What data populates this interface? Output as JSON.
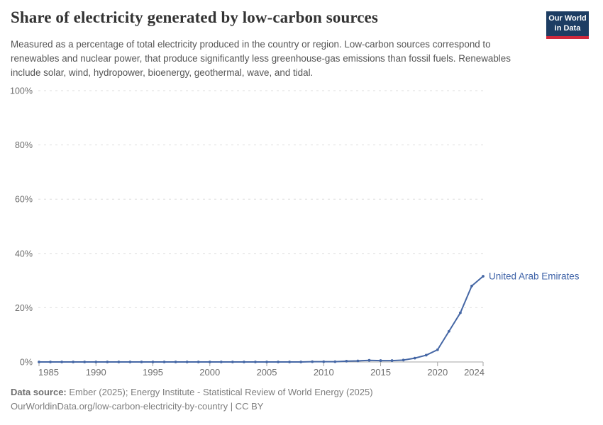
{
  "header": {
    "title": "Share of electricity generated by low-carbon sources",
    "subtitle": "Measured as a percentage of total electricity produced in the country or region. Low-carbon sources correspond to renewables and nuclear power, that produce significantly less greenhouse-gas emissions than fossil fuels. Renewables include solar, wind, hydropower, bioenergy, geothermal, wave, and tidal.",
    "logo_line1": "Our World",
    "logo_line2": "in Data"
  },
  "chart_data": {
    "type": "line",
    "title": "Share of electricity generated by low-carbon sources",
    "x": [
      1985,
      1986,
      1987,
      1988,
      1989,
      1990,
      1991,
      1992,
      1993,
      1994,
      1995,
      1996,
      1997,
      1998,
      1999,
      2000,
      2001,
      2002,
      2003,
      2004,
      2005,
      2006,
      2007,
      2008,
      2009,
      2010,
      2011,
      2012,
      2013,
      2014,
      2015,
      2016,
      2017,
      2018,
      2019,
      2020,
      2021,
      2022,
      2023,
      2024
    ],
    "series": [
      {
        "name": "United Arab Emirates",
        "values": [
          0,
          0,
          0,
          0,
          0,
          0,
          0,
          0,
          0,
          0,
          0,
          0,
          0,
          0,
          0,
          0,
          0,
          0,
          0,
          0,
          0,
          0,
          0,
          0,
          0.1,
          0.1,
          0.1,
          0.3,
          0.4,
          0.6,
          0.5,
          0.5,
          0.7,
          1.4,
          2.5,
          4.5,
          11.3,
          18.1,
          28,
          31.6
        ]
      }
    ],
    "x_ticks": [
      1985,
      1990,
      1995,
      2000,
      2005,
      2010,
      2015,
      2020,
      2024
    ],
    "y_ticks": [
      0,
      20,
      40,
      60,
      80,
      100
    ],
    "y_tick_suffix": "%",
    "xlim": [
      1985,
      2024
    ],
    "ylim": [
      0,
      100
    ],
    "grid": "horizontal-dashed",
    "legend_position": "line-end-label",
    "markers": true
  },
  "colors": {
    "line": "#4567a5",
    "entity_label": "#3f63a8",
    "grid": "#dedede",
    "axis": "#a5a5a5",
    "tick_label": "#6e6e6e",
    "logo_bg": "#1d3d63",
    "logo_bar": "#d0293c"
  },
  "footer": {
    "source_label": "Data source:",
    "source_text": " Ember (2025); Energy Institute - Statistical Review of World Energy (2025)",
    "license_line": "OurWorldinData.org/low-carbon-electricity-by-country | CC BY"
  }
}
